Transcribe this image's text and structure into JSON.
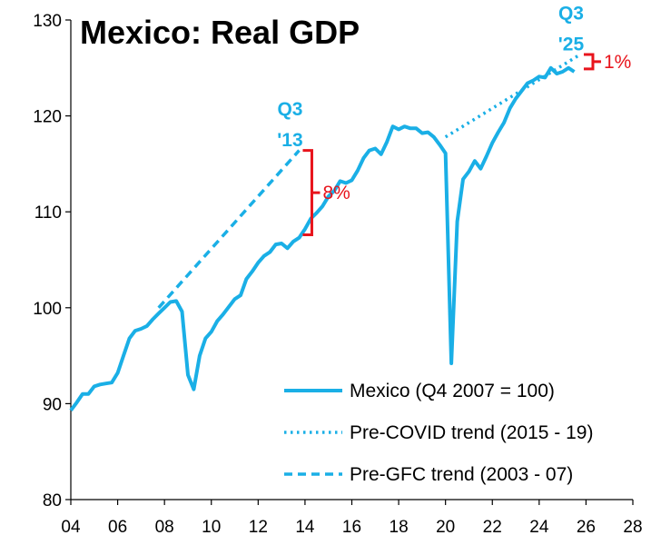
{
  "chart_data": {
    "type": "line",
    "title": "Mexico: Real GDP",
    "xlabel": "",
    "ylabel": "",
    "xlim": [
      2004,
      2028
    ],
    "ylim": [
      80,
      130
    ],
    "x_ticks": [
      2004,
      2006,
      2008,
      2010,
      2012,
      2014,
      2016,
      2018,
      2020,
      2022,
      2024,
      2026,
      2028
    ],
    "x_tick_labels": [
      "04",
      "06",
      "08",
      "10",
      "12",
      "14",
      "16",
      "18",
      "20",
      "22",
      "24",
      "26",
      "28"
    ],
    "y_ticks": [
      80,
      90,
      100,
      110,
      120,
      130
    ],
    "y_tick_labels": [
      "80",
      "90",
      "100",
      "110",
      "120",
      "130"
    ],
    "grid": false,
    "legend_position": "bottom-right",
    "colors": {
      "series": "#1aafe6",
      "annotation": "#e8141c"
    },
    "series": [
      {
        "name": "Mexico (Q4 2007 = 100)",
        "style": "solid",
        "points": [
          [
            2004.0,
            89.3
          ],
          [
            2004.25,
            90.1
          ],
          [
            2004.5,
            91.0
          ],
          [
            2004.75,
            91.0
          ],
          [
            2005.0,
            91.8
          ],
          [
            2005.25,
            92.0
          ],
          [
            2005.5,
            92.1
          ],
          [
            2005.75,
            92.2
          ],
          [
            2006.0,
            93.2
          ],
          [
            2006.25,
            95.0
          ],
          [
            2006.5,
            96.8
          ],
          [
            2006.75,
            97.6
          ],
          [
            2007.0,
            97.8
          ],
          [
            2007.25,
            98.1
          ],
          [
            2007.5,
            98.8
          ],
          [
            2007.75,
            99.4
          ],
          [
            2008.0,
            100.0
          ],
          [
            2008.25,
            100.6
          ],
          [
            2008.5,
            100.7
          ],
          [
            2008.75,
            99.6
          ],
          [
            2009.0,
            93.0
          ],
          [
            2009.25,
            91.5
          ],
          [
            2009.5,
            95.0
          ],
          [
            2009.75,
            96.8
          ],
          [
            2010.0,
            97.5
          ],
          [
            2010.25,
            98.6
          ],
          [
            2010.5,
            99.3
          ],
          [
            2010.75,
            100.1
          ],
          [
            2011.0,
            100.9
          ],
          [
            2011.25,
            101.3
          ],
          [
            2011.5,
            103.0
          ],
          [
            2011.75,
            103.8
          ],
          [
            2012.0,
            104.7
          ],
          [
            2012.25,
            105.4
          ],
          [
            2012.5,
            105.8
          ],
          [
            2012.75,
            106.6
          ],
          [
            2013.0,
            106.7
          ],
          [
            2013.25,
            106.2
          ],
          [
            2013.5,
            106.9
          ],
          [
            2013.75,
            107.3
          ],
          [
            2014.0,
            108.2
          ],
          [
            2014.25,
            109.3
          ],
          [
            2014.5,
            109.9
          ],
          [
            2014.75,
            110.6
          ],
          [
            2015.0,
            111.6
          ],
          [
            2015.25,
            112.2
          ],
          [
            2015.5,
            113.2
          ],
          [
            2015.75,
            113.0
          ],
          [
            2016.0,
            113.3
          ],
          [
            2016.25,
            114.3
          ],
          [
            2016.5,
            115.6
          ],
          [
            2016.75,
            116.4
          ],
          [
            2017.0,
            116.6
          ],
          [
            2017.25,
            116.0
          ],
          [
            2017.5,
            117.3
          ],
          [
            2017.75,
            118.9
          ],
          [
            2018.0,
            118.6
          ],
          [
            2018.25,
            118.9
          ],
          [
            2018.5,
            118.7
          ],
          [
            2018.75,
            118.7
          ],
          [
            2019.0,
            118.2
          ],
          [
            2019.25,
            118.3
          ],
          [
            2019.5,
            117.8
          ],
          [
            2019.75,
            117.0
          ],
          [
            2020.0,
            116.1
          ],
          [
            2020.25,
            94.2
          ],
          [
            2020.5,
            109.0
          ],
          [
            2020.75,
            113.4
          ],
          [
            2021.0,
            114.2
          ],
          [
            2021.25,
            115.3
          ],
          [
            2021.5,
            114.5
          ],
          [
            2021.75,
            115.8
          ],
          [
            2022.0,
            117.2
          ],
          [
            2022.25,
            118.3
          ],
          [
            2022.5,
            119.3
          ],
          [
            2022.75,
            120.8
          ],
          [
            2023.0,
            121.8
          ],
          [
            2023.25,
            122.6
          ],
          [
            2023.5,
            123.4
          ],
          [
            2023.75,
            123.7
          ],
          [
            2024.0,
            124.1
          ],
          [
            2024.25,
            124.0
          ],
          [
            2024.5,
            125.0
          ],
          [
            2024.75,
            124.4
          ],
          [
            2025.0,
            124.6
          ],
          [
            2025.25,
            125.0
          ],
          [
            2025.5,
            124.6
          ]
        ]
      },
      {
        "name": "Pre-COVID trend (2015 - 19)",
        "style": "dotted",
        "points": [
          [
            2020.0,
            117.8
          ],
          [
            2025.75,
            126.4
          ]
        ]
      },
      {
        "name": "Pre-GFC trend (2003 - 07)",
        "style": "dashed",
        "points": [
          [
            2007.75,
            100.0
          ],
          [
            2013.75,
            116.4
          ]
        ]
      }
    ],
    "annotations": [
      {
        "label_top": "Q3",
        "label_bottom": "'13",
        "x": 2013.75,
        "y": 117.4,
        "color": "#1aafe6"
      },
      {
        "label_top": "Q3",
        "label_bottom": "'25",
        "x": 2025.75,
        "y": 127.4,
        "color": "#1aafe6"
      },
      {
        "gap_label": "8%",
        "x": 2013.75,
        "y_low": 107.6,
        "y_high": 116.4,
        "color": "#e8141c"
      },
      {
        "gap_label": "1%",
        "x": 2025.75,
        "y_low": 124.9,
        "y_high": 126.4,
        "color": "#e8141c"
      }
    ]
  }
}
